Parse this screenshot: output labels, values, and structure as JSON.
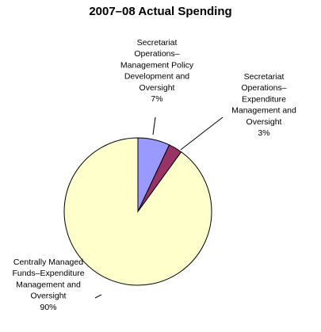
{
  "chart_data": {
    "type": "pie",
    "title": "2007–08 Actual Spending",
    "slices": [
      {
        "label_lines": [
          "Secretariat",
          "Operations–",
          "Management Policy",
          "Development and",
          "Oversight"
        ],
        "percent_label": "7%",
        "value": 7,
        "color": "#9999ff"
      },
      {
        "label_lines": [
          "Secretariat",
          "Operations–",
          "Expenditure",
          "Management and",
          "Oversight"
        ],
        "percent_label": "3%",
        "value": 3,
        "color": "#993366"
      },
      {
        "label_lines": [
          "Centrally Managed",
          "Funds–Expenditure",
          "Management and",
          "Oversight"
        ],
        "percent_label": "90%",
        "value": 90,
        "color": "#ffffcc"
      }
    ],
    "start_angle_deg": 0,
    "direction": "clockwise"
  }
}
